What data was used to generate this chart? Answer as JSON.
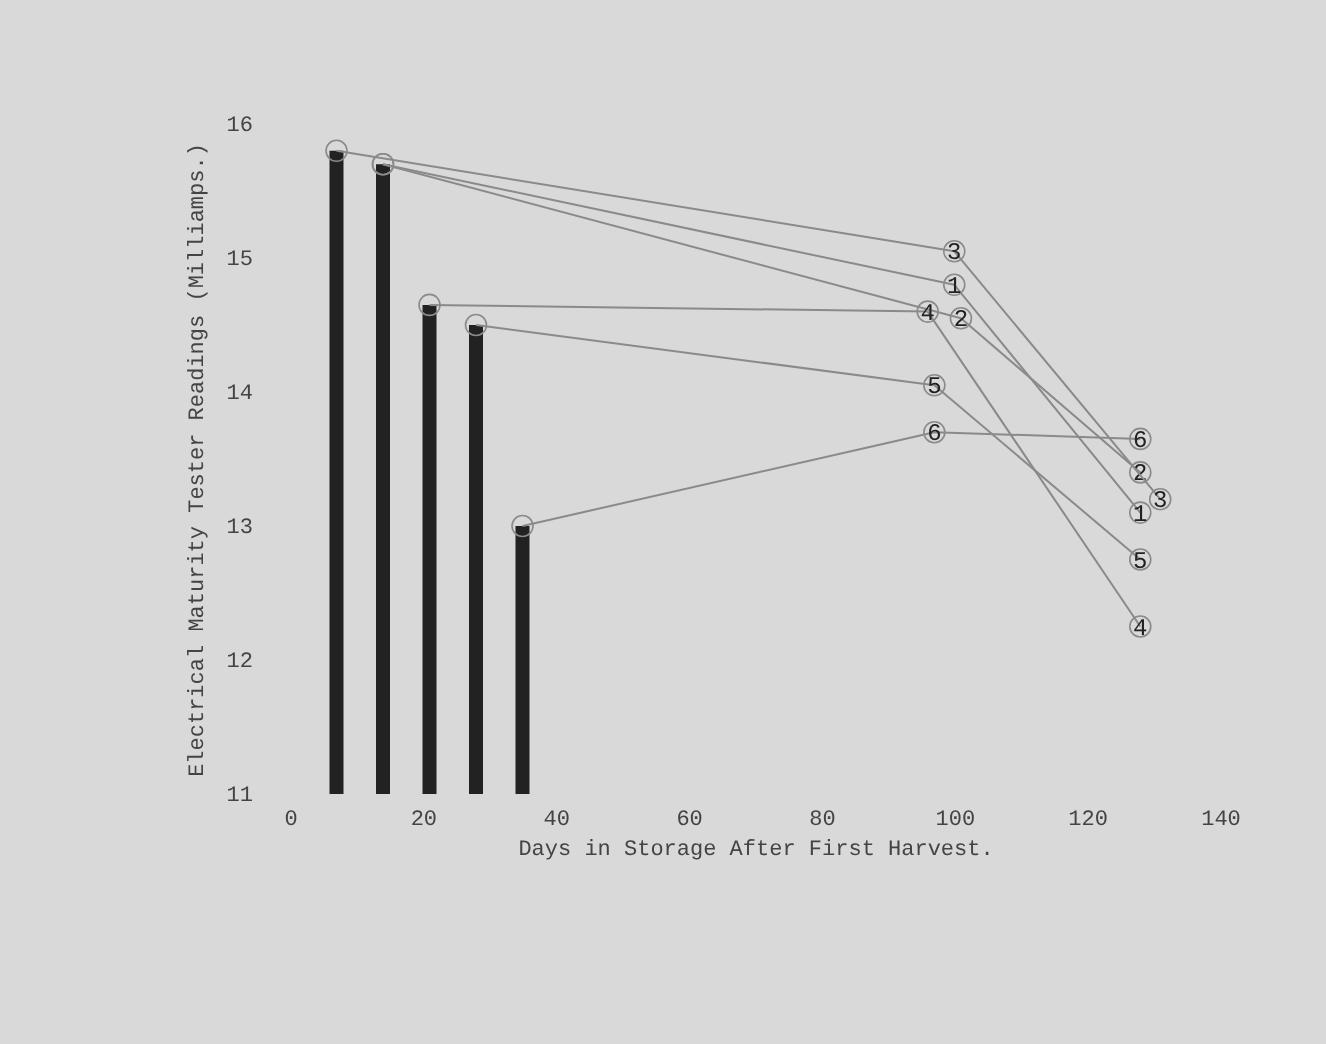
{
  "chart_data": {
    "type": "line",
    "xlabel": "Days in Storage After First Harvest.",
    "ylabel": "Electrical Maturity Tester Readings (Milliamps.)",
    "xlim": [
      0,
      140
    ],
    "xticks": [
      0,
      20,
      40,
      60,
      80,
      100,
      120,
      140
    ],
    "ylim": [
      11,
      16
    ],
    "yticks": [
      11,
      12,
      13,
      14,
      15,
      16
    ],
    "marker": "circle",
    "line_style": "solid",
    "series": [
      {
        "type": "bar",
        "color": "#222222",
        "x": [
          7,
          14,
          21,
          28,
          35
        ],
        "values": [
          15.8,
          15.7,
          14.65,
          14.5,
          13.0
        ]
      },
      {
        "name": "1",
        "color": "#8a8a8a",
        "x": [
          14,
          100,
          128
        ],
        "values": [
          15.7,
          14.8,
          13.1
        ]
      },
      {
        "name": "2",
        "color": "#8a8a8a",
        "x": [
          14,
          101,
          128
        ],
        "values": [
          15.7,
          14.55,
          13.4
        ]
      },
      {
        "name": "3",
        "color": "#8a8a8a",
        "x": [
          7,
          100,
          131
        ],
        "values": [
          15.8,
          15.05,
          13.2
        ]
      },
      {
        "name": "4",
        "color": "#8a8a8a",
        "x": [
          21,
          96,
          128
        ],
        "values": [
          14.65,
          14.6,
          12.25
        ]
      },
      {
        "name": "5",
        "color": "#8a8a8a",
        "x": [
          28,
          97,
          128
        ],
        "values": [
          14.5,
          14.05,
          12.75
        ]
      },
      {
        "name": "6",
        "color": "#8a8a8a",
        "x": [
          35,
          97,
          128
        ],
        "values": [
          13.0,
          13.7,
          13.65
        ]
      }
    ]
  }
}
